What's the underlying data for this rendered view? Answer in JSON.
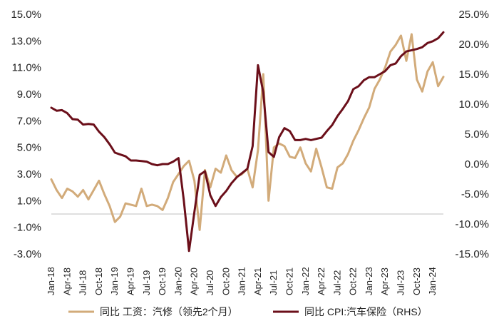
{
  "chart_data": {
    "type": "line",
    "x": [
      "Jan-18",
      "Feb-18",
      "Mar-18",
      "Apr-18",
      "May-18",
      "Jun-18",
      "Jul-18",
      "Aug-18",
      "Sep-18",
      "Oct-18",
      "Nov-18",
      "Dec-18",
      "Jan-19",
      "Feb-19",
      "Mar-19",
      "Apr-19",
      "May-19",
      "Jun-19",
      "Jul-19",
      "Aug-19",
      "Sep-19",
      "Oct-19",
      "Nov-19",
      "Dec-19",
      "Jan-20",
      "Feb-20",
      "Mar-20",
      "Apr-20",
      "May-20",
      "Jun-20",
      "Jul-20",
      "Aug-20",
      "Sep-20",
      "Oct-20",
      "Nov-20",
      "Dec-20",
      "Jan-21",
      "Feb-21",
      "Mar-21",
      "Apr-21",
      "May-21",
      "Jun-21",
      "Jul-21",
      "Aug-21",
      "Sep-21",
      "Oct-21",
      "Nov-21",
      "Dec-21",
      "Jan-22",
      "Feb-22",
      "Mar-22",
      "Apr-22",
      "May-22",
      "Jun-22",
      "Jul-22",
      "Aug-22",
      "Sep-22",
      "Oct-22",
      "Nov-22",
      "Dec-22",
      "Jan-23",
      "Feb-23",
      "Mar-23",
      "Apr-23",
      "May-23",
      "Jun-23",
      "Jul-23",
      "Aug-23",
      "Sep-23",
      "Oct-23",
      "Nov-23",
      "Dec-23",
      "Jan-24",
      "Feb-24",
      "Mar-24"
    ],
    "x_tick_labels": [
      "Jan-18",
      "Apr-18",
      "Jul-18",
      "Oct-18",
      "Jan-19",
      "Apr-19",
      "Jul-19",
      "Oct-19",
      "Jan-20",
      "Apr-20",
      "Jul-20",
      "Oct-20",
      "Jan-21",
      "Apr-21",
      "Jul-21",
      "Oct-21",
      "Jan-22",
      "Apr-22",
      "Jul-22",
      "Oct-22",
      "Jan-23",
      "Apr-23",
      "Jul-23",
      "Oct-23",
      "Jan-24"
    ],
    "y_left": {
      "ticks": [
        "-3.0%",
        "-1.0%",
        "1.0%",
        "3.0%",
        "5.0%",
        "7.0%",
        "9.0%",
        "11.0%",
        "13.0%",
        "15.0%"
      ],
      "ylim": [
        -3.0,
        15.0
      ]
    },
    "y_right": {
      "ticks": [
        "-15.0%",
        "-10.0%",
        "-5.0%",
        "0.0%",
        "5.0%",
        "10.0%",
        "15.0%",
        "20.0%",
        "25.0%"
      ],
      "ylim": [
        -15.0,
        25.0
      ]
    },
    "zero_line_left_value": 0.0,
    "series": [
      {
        "name": "同比 工资：汽修（领先2个月）",
        "axis": "left",
        "color": "#d2ab7a",
        "start_index": 0,
        "values": [
          2.6,
          1.8,
          1.2,
          1.9,
          1.7,
          1.3,
          1.8,
          1.1,
          1.8,
          2.5,
          1.5,
          0.6,
          -0.6,
          -0.2,
          0.8,
          0.7,
          0.6,
          1.9,
          0.6,
          0.7,
          0.6,
          0.3,
          1.2,
          2.4,
          3.0,
          3.6,
          4.0,
          2.5,
          -1.2,
          3.3,
          2.0,
          3.4,
          3.1,
          4.4,
          3.3,
          2.8,
          3.0,
          3.4,
          2.0,
          4.8,
          10.5,
          1.0,
          5.0,
          5.3,
          5.1,
          4.3,
          4.2,
          5.0,
          3.8,
          3.2,
          4.9,
          3.5,
          2.0,
          1.9,
          3.5,
          3.8,
          4.5,
          5.5,
          6.3,
          7.2,
          8.0,
          9.4,
          10.1,
          11.0,
          12.2,
          12.7,
          13.4,
          11.5,
          13.5,
          10.1,
          9.2,
          10.7,
          11.4,
          9.6,
          10.3
        ],
        "values_note_end": "series extends to Mar-24 region; last visible point ~10.2%"
      },
      {
        "name": "同比 CPI:汽车保险（RHS）",
        "axis": "right",
        "color": "#6b0f1a",
        "start_index": 0,
        "values": [
          9.4,
          8.9,
          9.0,
          8.5,
          7.5,
          7.4,
          6.6,
          6.7,
          6.6,
          5.4,
          4.5,
          3.3,
          1.9,
          1.6,
          1.3,
          0.6,
          0.6,
          0.5,
          0.4,
          0.0,
          -0.2,
          0.0,
          0.0,
          0.4,
          1.0,
          -6.0,
          -14.5,
          -8.0,
          -1.8,
          -1.2,
          -5.2,
          -7.0,
          -5.5,
          -4.5,
          -3.2,
          -2.2,
          -1.5,
          -0.8,
          3.0,
          16.5,
          12.0,
          2.0,
          1.2,
          4.5,
          6.0,
          5.5,
          4.0,
          4.0,
          4.2,
          4.0,
          4.2,
          4.4,
          5.5,
          6.5,
          8.0,
          9.2,
          10.5,
          12.5,
          13.0,
          14.0,
          14.5,
          14.5,
          15.0,
          15.5,
          16.5,
          16.8,
          18.0,
          18.8,
          19.0,
          19.2,
          19.5,
          20.2,
          20.5,
          21.0,
          22.0
        ]
      }
    ],
    "grid": false,
    "legend_position": "bottom",
    "legend": [
      {
        "label": "同比 工资：汽修（领先2个月）",
        "color": "#d2ab7a"
      },
      {
        "label": "同比 CPI:汽车保险（RHS）",
        "color": "#6b0f1a"
      }
    ],
    "title": "",
    "xlabel": "",
    "ylabel": ""
  }
}
